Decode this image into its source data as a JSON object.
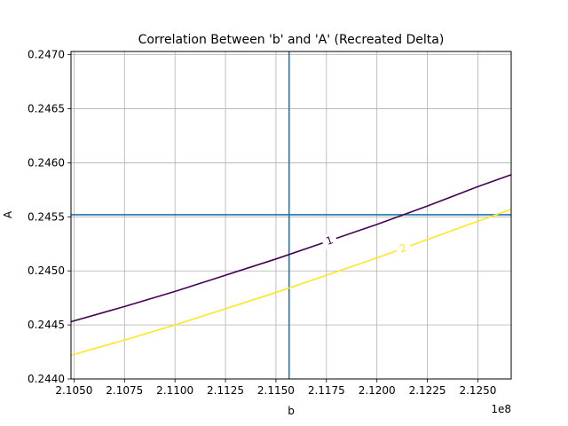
{
  "chart_data": {
    "type": "line",
    "title": "Correlation Between 'b' and 'A' (Recreated Delta)",
    "xlabel": "b",
    "ylabel": "A",
    "x_offset_label": "1e8",
    "xlim": [
      2.10485,
      2.12665
    ],
    "ylim": [
      0.244,
      0.24703
    ],
    "x_ticks": [
      2.105,
      2.1075,
      2.11,
      2.1125,
      2.115,
      2.1175,
      2.12,
      2.1225,
      2.125
    ],
    "x_tick_labels": [
      "2.1050",
      "2.1075",
      "2.1100",
      "2.1125",
      "2.1150",
      "2.1175",
      "2.1200",
      "2.1225",
      "2.1250"
    ],
    "y_ticks": [
      0.244,
      0.2445,
      0.245,
      0.2455,
      0.246,
      0.2465,
      0.247
    ],
    "y_tick_labels": [
      "0.2440",
      "0.2445",
      "0.2450",
      "0.2455",
      "0.2460",
      "0.2465",
      "0.2470"
    ],
    "grid": true,
    "reference_lines": {
      "vertical_x": 2.11565,
      "horizontal_y": 0.24552,
      "color": "#1f77b4"
    },
    "series": [
      {
        "label": "1",
        "color": "#440154",
        "x": [
          2.10485,
          2.1075,
          2.11,
          2.1125,
          2.115,
          2.1175,
          2.12,
          2.1225,
          2.125,
          2.12665
        ],
        "y": [
          0.24453,
          0.24467,
          0.24481,
          0.24496,
          0.24511,
          0.24527,
          0.24543,
          0.2456,
          0.24578,
          0.24589
        ],
        "label_x": 2.11765
      },
      {
        "label": "2",
        "color": "#fde725",
        "x": [
          2.10485,
          2.1075,
          2.11,
          2.1125,
          2.115,
          2.1175,
          2.12,
          2.1225,
          2.125,
          2.12665
        ],
        "y": [
          0.24422,
          0.24436,
          0.2445,
          0.24465,
          0.2448,
          0.24496,
          0.24512,
          0.24529,
          0.24546,
          0.24557
        ],
        "label_x": 2.1213
      }
    ]
  }
}
